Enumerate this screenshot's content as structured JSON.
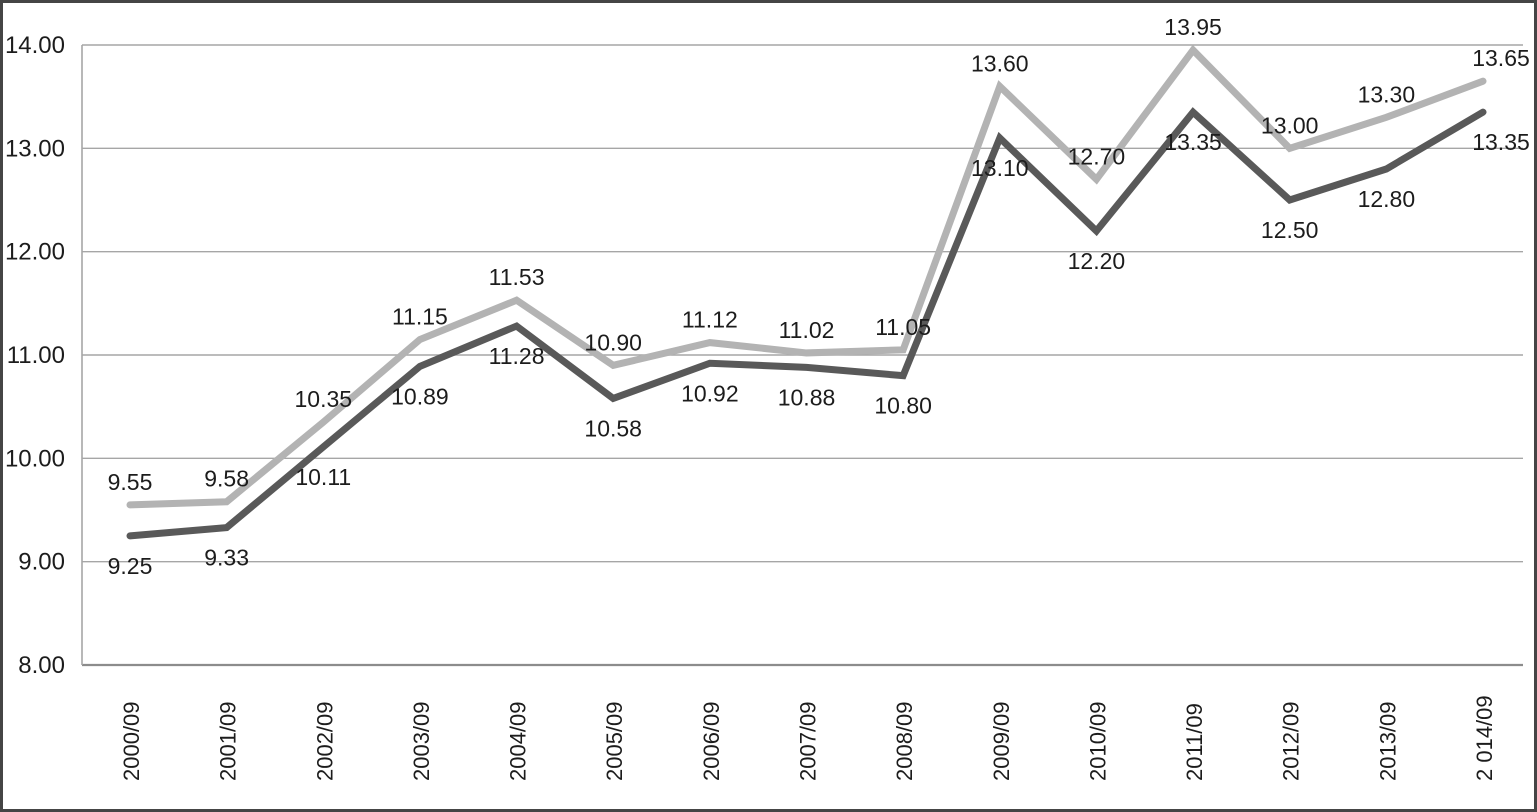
{
  "chart_data": {
    "type": "line",
    "title": "",
    "xlabel": "",
    "ylabel": "",
    "legend": "none",
    "grid": true,
    "data_labels": true,
    "categories": [
      "2000/09",
      "2001/09",
      "2002/09",
      "2003/09",
      "2004/09",
      "2005/09",
      "2006/09",
      "2007/09",
      "2008/09",
      "2009/09",
      "2010/09",
      "2011/09",
      "2012/09",
      "2013/09",
      "2 014/09"
    ],
    "series": [
      {
        "name": "upper-light-gray-line",
        "color": "#b3b3b3",
        "label_position": "above",
        "values": [
          9.55,
          9.58,
          10.35,
          11.15,
          11.53,
          10.9,
          11.12,
          11.02,
          11.05,
          13.6,
          12.7,
          13.95,
          13.0,
          13.3,
          13.65
        ]
      },
      {
        "name": "lower-dark-gray-line",
        "color": "#595959",
        "label_position": "below",
        "values": [
          9.25,
          9.33,
          10.11,
          10.89,
          11.28,
          10.58,
          10.92,
          10.88,
          10.8,
          13.1,
          12.2,
          13.35,
          12.5,
          12.8,
          13.35
        ]
      }
    ],
    "y_axis": {
      "min": 8,
      "max": 14,
      "tick_step": 1,
      "tick_labels": [
        "8.00",
        "9.00",
        "10.00",
        "11.00",
        "12.00",
        "13.00",
        "14.00"
      ]
    },
    "colors": {
      "gridline": "#a6a6a6",
      "axis_line": "#8c8c8c",
      "text": "#1c1c1c",
      "frame_border": "#454545",
      "background": "#ffffff"
    }
  }
}
